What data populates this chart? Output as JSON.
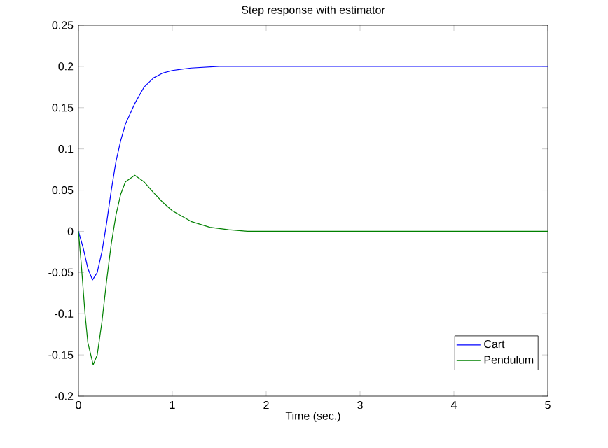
{
  "chart_data": {
    "type": "line",
    "title": "Step response with estimator",
    "xlabel": "Time (sec.)",
    "xlim": [
      0,
      5
    ],
    "ylim": [
      -0.2,
      0.25
    ],
    "xticks": [
      0,
      1,
      2,
      3,
      4,
      5
    ],
    "yticks": [
      -0.2,
      -0.15,
      -0.1,
      -0.05,
      0,
      0.05,
      0.1,
      0.15,
      0.2,
      0.25
    ],
    "legend": "bottom right",
    "grid": false,
    "marker": "none",
    "line_style": "solid",
    "series": [
      {
        "name": "Cart",
        "color": "#0000ff",
        "x": [
          0,
          0.05,
          0.1,
          0.15,
          0.2,
          0.25,
          0.3,
          0.35,
          0.4,
          0.45,
          0.5,
          0.6,
          0.7,
          0.8,
          0.9,
          1.0,
          1.2,
          1.5,
          2,
          5
        ],
        "values": [
          0,
          -0.02,
          -0.045,
          -0.059,
          -0.05,
          -0.025,
          0.01,
          0.05,
          0.085,
          0.11,
          0.13,
          0.155,
          0.175,
          0.186,
          0.192,
          0.195,
          0.198,
          0.2,
          0.2,
          0.2
        ]
      },
      {
        "name": "Pendulum",
        "color": "#008000",
        "x": [
          0,
          0.03,
          0.07,
          0.1,
          0.157,
          0.2,
          0.25,
          0.3,
          0.35,
          0.4,
          0.45,
          0.5,
          0.6,
          0.7,
          0.8,
          0.9,
          1.0,
          1.2,
          1.4,
          1.6,
          1.8,
          5
        ],
        "values": [
          0,
          -0.04,
          -0.1,
          -0.135,
          -0.162,
          -0.15,
          -0.11,
          -0.06,
          -0.015,
          0.02,
          0.045,
          0.06,
          0.068,
          0.06,
          0.047,
          0.035,
          0.025,
          0.012,
          0.005,
          0.002,
          0,
          0
        ]
      }
    ]
  }
}
